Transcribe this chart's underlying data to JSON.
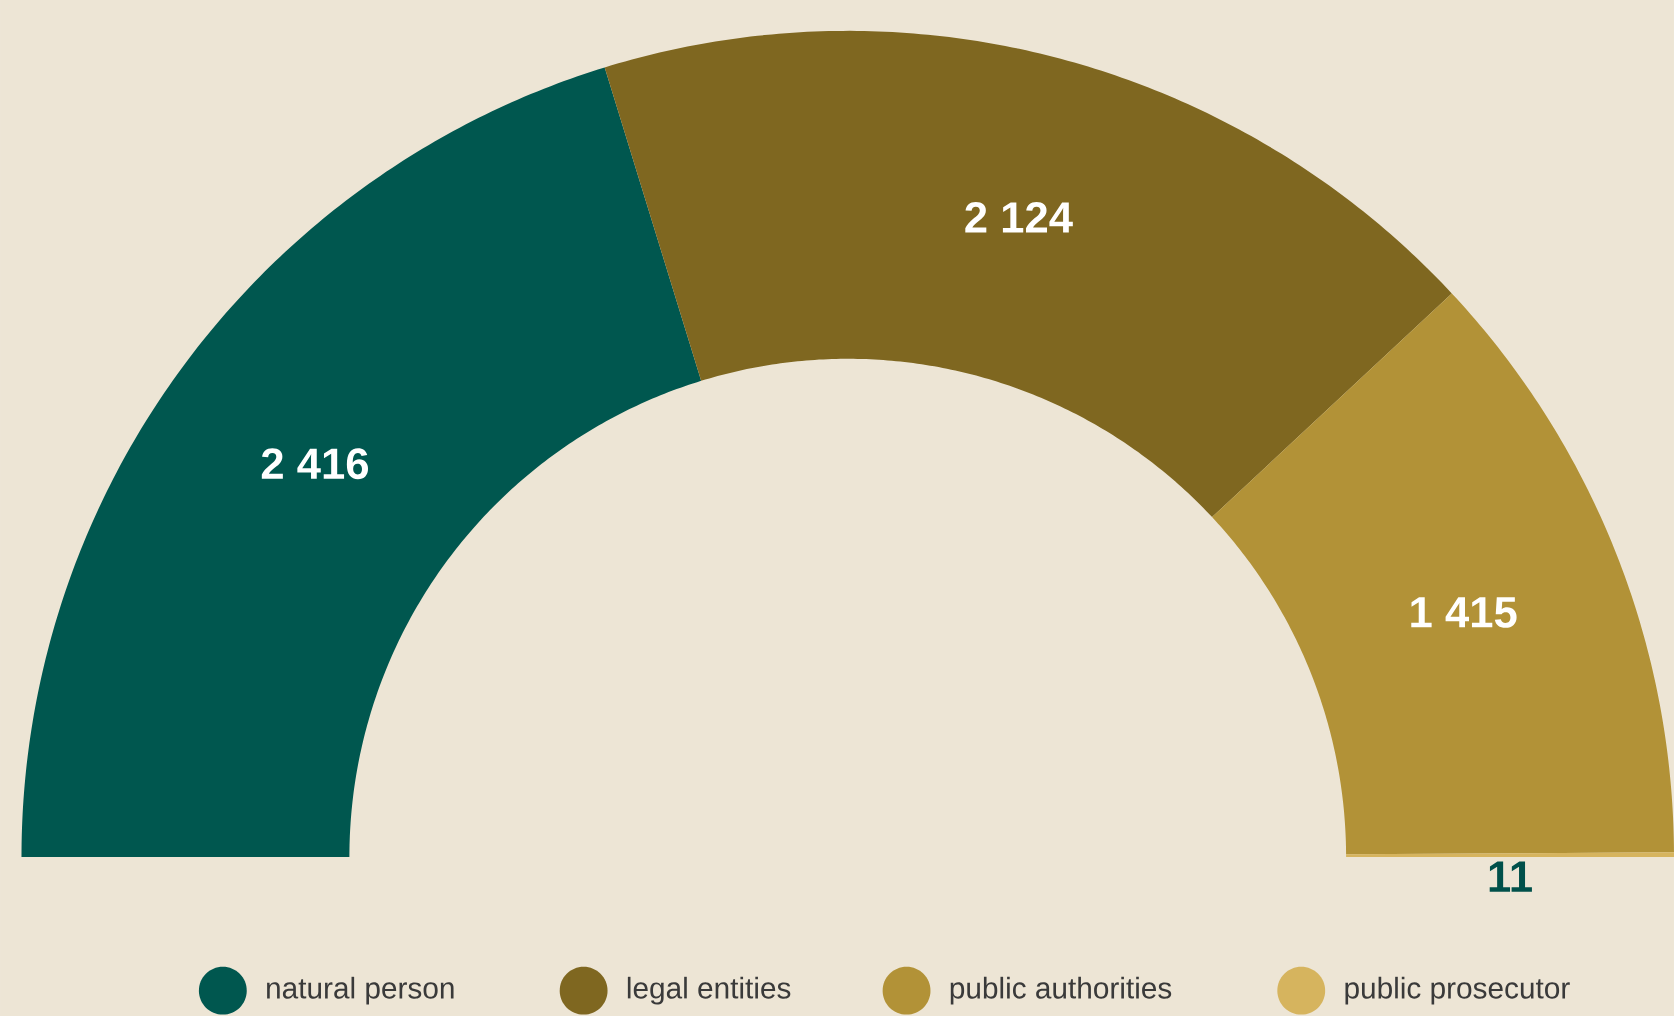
{
  "chart_data": {
    "type": "donut",
    "categories": [
      "natural person",
      "legal entities",
      "public authorities",
      "public prosecutor"
    ],
    "values": [
      2416,
      2124,
      1415,
      11
    ],
    "value_labels": [
      "2 416",
      "2 124",
      "1 415",
      "11"
    ],
    "colors": [
      "#00574f",
      "#7f6720",
      "#b29237",
      "#d6b45e"
    ],
    "legend": "bottom"
  }
}
